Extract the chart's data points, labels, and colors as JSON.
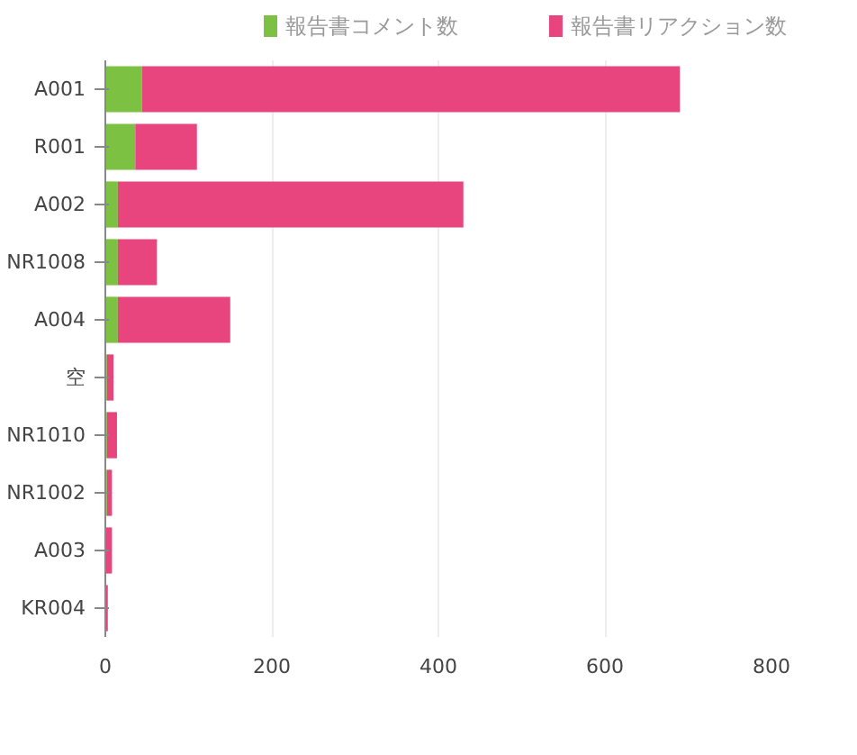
{
  "chart_data": {
    "type": "bar",
    "orientation": "horizontal",
    "stacked": true,
    "categories": [
      "A001",
      "R001",
      "A002",
      "NR1008",
      "A004",
      "空",
      "NR1010",
      "NR1002",
      "A003",
      "KR004"
    ],
    "series": [
      {
        "name": "報告書コメント数",
        "color": "#7dc142",
        "values": [
          44,
          36,
          15,
          15,
          15,
          2,
          2,
          2,
          1,
          0
        ]
      },
      {
        "name": "報告書リアクション数",
        "color": "#e8447e",
        "values": [
          646,
          74,
          415,
          47,
          135,
          8,
          12,
          6,
          7,
          3
        ]
      }
    ],
    "xlim": [
      0,
      800
    ],
    "xticks": [
      0,
      200,
      400,
      600,
      800
    ],
    "grid": "x",
    "legend": "top"
  }
}
